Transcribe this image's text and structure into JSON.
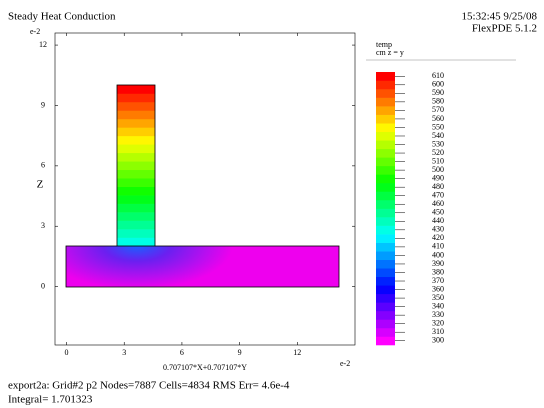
{
  "chart_data": {
    "type": "contour",
    "title": "Steady Heat Conduction",
    "timestamp": "15:32:45 9/25/08",
    "software": "FlexPDE 5.1.2",
    "y_exponent": "e-2",
    "x_exponent": "e-2",
    "y_label": "Z",
    "x_label": "0.707107*X+0.707107*Y",
    "xlim": [
      -0.6,
      15
    ],
    "xticks": [
      0,
      3,
      6,
      9,
      12
    ],
    "ylim": [
      -2.9,
      12.6
    ],
    "yticks": [
      0,
      3,
      6,
      9,
      12
    ],
    "legend_title": "temp",
    "legend_subtitle": "cm z = y",
    "levels": [
      300,
      310,
      320,
      330,
      340,
      350,
      360,
      370,
      380,
      390,
      400,
      410,
      420,
      430,
      440,
      450,
      460,
      470,
      480,
      490,
      500,
      510,
      520,
      530,
      540,
      550,
      560,
      570,
      580,
      590,
      600,
      610
    ],
    "footer": [
      "export2a:  Grid#2  p2  Nodes=7887 Cells=4834 RMS Err= 4.6e-4",
      "Integral=  1.701323"
    ]
  }
}
